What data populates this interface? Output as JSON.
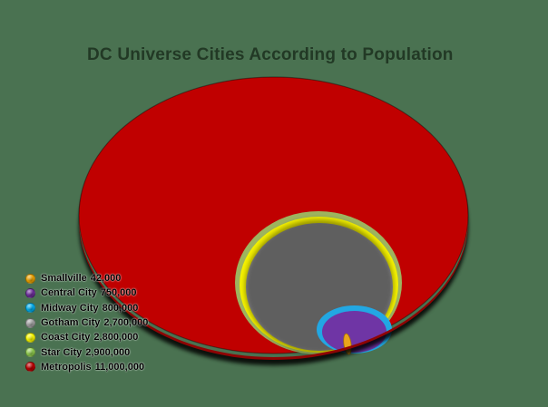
{
  "colors": {
    "background": "#4A7251",
    "title_text": "dark-translucent-black",
    "legend_text": "#000000"
  },
  "chart_data": {
    "type": "nested-circles-3d",
    "title": "DC Universe Cities According to Population",
    "legend_position": "bottom-left",
    "note": "concentric 3D ellipses tangent at bottom, sized by population",
    "series": [
      {
        "name": "Smallville",
        "population": 42000,
        "label": "42,000",
        "color": "#F0A500",
        "chart_fill": "#E9A41C"
      },
      {
        "name": "Central City",
        "population": 750000,
        "label": "750,000",
        "color": "#7030A0",
        "chart_fill": "#6F35A5"
      },
      {
        "name": "Midway City",
        "population": 800000,
        "label": "800,000",
        "color": "#00B0F0",
        "chart_fill": "#22A7E3"
      },
      {
        "name": "Gotham City",
        "population": 2700000,
        "label": "2,700,000",
        "color": "#A6A6A6",
        "chart_fill": "#9A9A9A"
      },
      {
        "name": "Coast City",
        "population": 2800000,
        "label": "2,800,000",
        "color": "#FFFF00",
        "chart_fill": "#F5F200"
      },
      {
        "name": "Star City",
        "population": 2900000,
        "label": "2,900,000",
        "color": "#92D050",
        "chart_fill": "#9DB45F"
      },
      {
        "name": "Metropolis",
        "population": 11000000,
        "label": "11,000,000",
        "color": "#C00000",
        "chart_fill": "#C00000"
      }
    ]
  }
}
